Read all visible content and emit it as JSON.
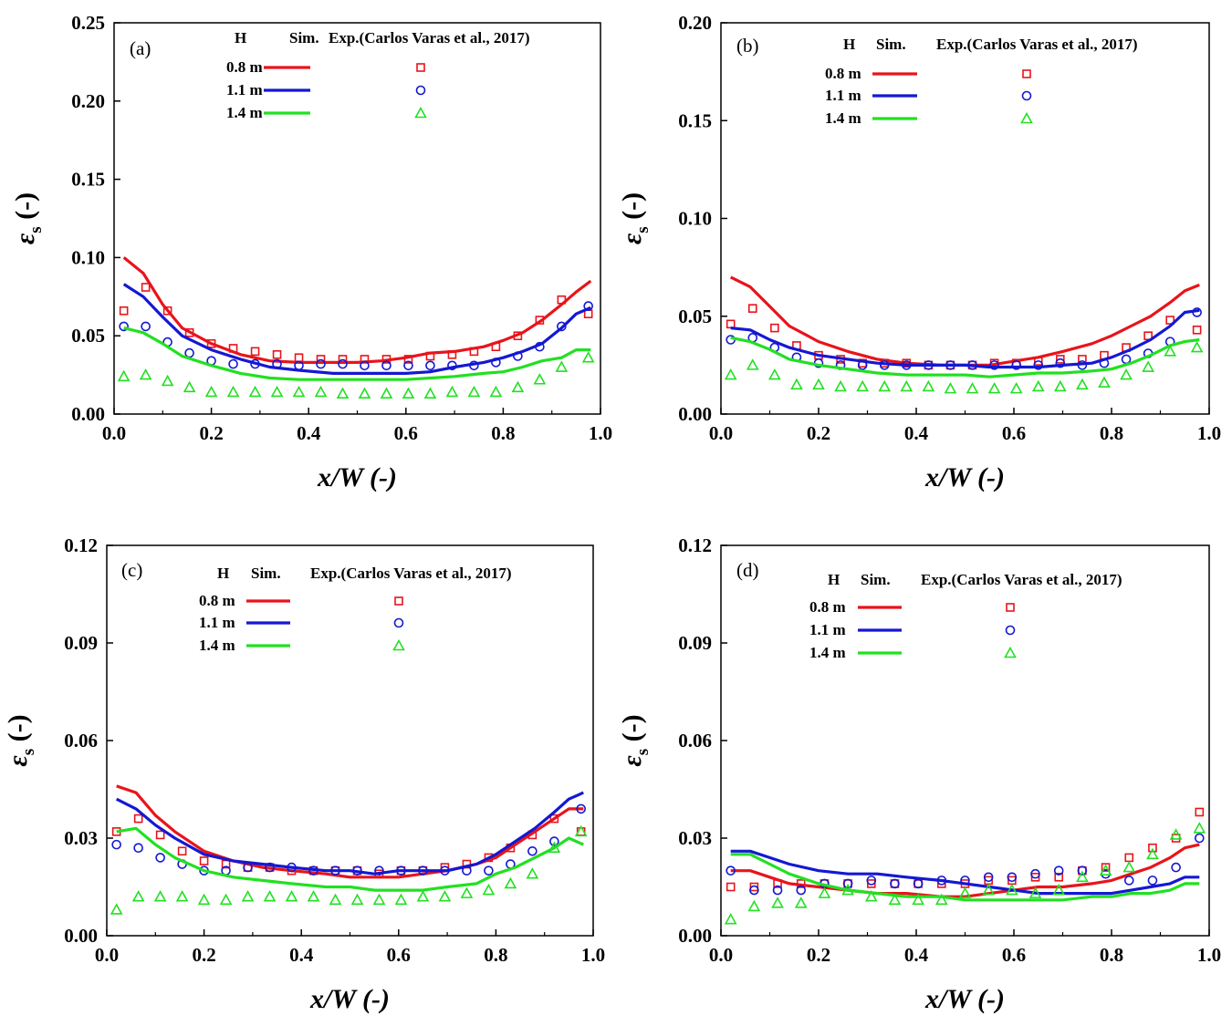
{
  "chart_data": [
    {
      "panel": "(a)",
      "type": "line+scatter",
      "xlabel": "x/W (-)",
      "ylabel_symbol": "ε",
      "ylabel_sub": "s",
      "ylabel_unit": " (-)",
      "xlim": [
        0,
        1.0
      ],
      "ylim": [
        0,
        0.25
      ],
      "xticks": [
        "0.0",
        "0.2",
        "0.4",
        "0.6",
        "0.8",
        "1.0"
      ],
      "yticks": [
        "0.00",
        "0.05",
        "0.10",
        "0.15",
        "0.20",
        "0.25"
      ],
      "legend": {
        "h": "H",
        "sim": "Sim.",
        "exp": "Exp.(Carlos Varas et al., 2017)",
        "rows": [
          "0.8 m",
          "1.1 m",
          "1.4 m"
        ]
      },
      "sim_x": [
        0.02,
        0.06,
        0.1,
        0.14,
        0.2,
        0.26,
        0.32,
        0.38,
        0.45,
        0.5,
        0.55,
        0.6,
        0.65,
        0.7,
        0.76,
        0.8,
        0.84,
        0.88,
        0.92,
        0.95,
        0.98
      ],
      "exp_x": [
        0.02,
        0.065,
        0.11,
        0.155,
        0.2,
        0.245,
        0.29,
        0.335,
        0.38,
        0.425,
        0.47,
        0.515,
        0.56,
        0.605,
        0.65,
        0.695,
        0.74,
        0.785,
        0.83,
        0.875,
        0.92,
        0.975
      ],
      "series": [
        {
          "name": "0.8 m",
          "sim": [
            0.1,
            0.09,
            0.07,
            0.055,
            0.045,
            0.038,
            0.034,
            0.033,
            0.033,
            0.033,
            0.034,
            0.036,
            0.039,
            0.04,
            0.043,
            0.047,
            0.052,
            0.06,
            0.07,
            0.078,
            0.085
          ],
          "exp": [
            0.066,
            0.081,
            0.066,
            0.052,
            0.045,
            0.042,
            0.04,
            0.038,
            0.036,
            0.035,
            0.035,
            0.035,
            0.035,
            0.035,
            0.037,
            0.038,
            0.04,
            0.043,
            0.05,
            0.06,
            0.073,
            0.064
          ]
        },
        {
          "name": "1.1 m",
          "sim": [
            0.083,
            0.075,
            0.062,
            0.05,
            0.041,
            0.035,
            0.03,
            0.028,
            0.026,
            0.026,
            0.026,
            0.026,
            0.027,
            0.03,
            0.033,
            0.036,
            0.04,
            0.045,
            0.055,
            0.064,
            0.068
          ],
          "exp": [
            0.056,
            0.056,
            0.046,
            0.039,
            0.034,
            0.032,
            0.032,
            0.032,
            0.031,
            0.032,
            0.032,
            0.031,
            0.031,
            0.031,
            0.031,
            0.031,
            0.031,
            0.033,
            0.037,
            0.043,
            0.056,
            0.069
          ]
        },
        {
          "name": "1.4 m",
          "sim": [
            0.055,
            0.052,
            0.045,
            0.037,
            0.031,
            0.026,
            0.023,
            0.022,
            0.022,
            0.022,
            0.022,
            0.022,
            0.023,
            0.024,
            0.026,
            0.027,
            0.03,
            0.034,
            0.036,
            0.041,
            0.041
          ],
          "exp": [
            0.024,
            0.025,
            0.021,
            0.017,
            0.014,
            0.014,
            0.014,
            0.014,
            0.014,
            0.014,
            0.013,
            0.013,
            0.013,
            0.013,
            0.013,
            0.014,
            0.014,
            0.014,
            0.017,
            0.022,
            0.03,
            0.036
          ]
        }
      ]
    },
    {
      "panel": "(b)",
      "type": "line+scatter",
      "xlabel": "x/W (-)",
      "ylabel_symbol": "ε",
      "ylabel_sub": "s",
      "ylabel_unit": " (-)",
      "xlim": [
        0,
        1.0
      ],
      "ylim": [
        0,
        0.2
      ],
      "xticks": [
        "0.0",
        "0.2",
        "0.4",
        "0.6",
        "0.8",
        "1.0"
      ],
      "yticks": [
        "0.00",
        "0.05",
        "0.10",
        "0.15",
        "0.20"
      ],
      "legend": {
        "h": "H",
        "sim": "Sim.",
        "exp": "Exp.(Carlos Varas et al., 2017)",
        "rows": [
          "0.8 m",
          "1.1 m",
          "1.4 m"
        ]
      },
      "sim_x": [
        0.02,
        0.06,
        0.1,
        0.14,
        0.2,
        0.26,
        0.32,
        0.38,
        0.45,
        0.5,
        0.55,
        0.6,
        0.65,
        0.7,
        0.76,
        0.8,
        0.84,
        0.88,
        0.92,
        0.95,
        0.98
      ],
      "exp_x": [
        0.02,
        0.065,
        0.11,
        0.155,
        0.2,
        0.245,
        0.29,
        0.335,
        0.38,
        0.425,
        0.47,
        0.515,
        0.56,
        0.605,
        0.65,
        0.695,
        0.74,
        0.785,
        0.83,
        0.875,
        0.92,
        0.975
      ],
      "series": [
        {
          "name": "0.8 m",
          "sim": [
            0.07,
            0.065,
            0.055,
            0.045,
            0.037,
            0.032,
            0.028,
            0.026,
            0.025,
            0.025,
            0.025,
            0.027,
            0.029,
            0.032,
            0.036,
            0.04,
            0.045,
            0.05,
            0.057,
            0.063,
            0.066
          ],
          "exp": [
            0.046,
            0.054,
            0.044,
            0.035,
            0.03,
            0.028,
            0.026,
            0.026,
            0.026,
            0.025,
            0.025,
            0.025,
            0.026,
            0.026,
            0.027,
            0.028,
            0.028,
            0.03,
            0.034,
            0.04,
            0.048,
            0.043
          ]
        },
        {
          "name": "1.1 m",
          "sim": [
            0.044,
            0.043,
            0.038,
            0.034,
            0.03,
            0.028,
            0.026,
            0.025,
            0.025,
            0.025,
            0.024,
            0.024,
            0.024,
            0.025,
            0.026,
            0.029,
            0.033,
            0.038,
            0.045,
            0.052,
            0.053
          ],
          "exp": [
            0.038,
            0.039,
            0.034,
            0.029,
            0.026,
            0.025,
            0.025,
            0.025,
            0.025,
            0.025,
            0.025,
            0.025,
            0.025,
            0.025,
            0.025,
            0.026,
            0.025,
            0.026,
            0.028,
            0.031,
            0.037,
            0.052
          ]
        },
        {
          "name": "1.4 m",
          "sim": [
            0.039,
            0.037,
            0.033,
            0.028,
            0.025,
            0.023,
            0.021,
            0.02,
            0.02,
            0.02,
            0.019,
            0.02,
            0.021,
            0.021,
            0.022,
            0.023,
            0.026,
            0.03,
            0.035,
            0.037,
            0.038
          ],
          "exp": [
            0.02,
            0.025,
            0.02,
            0.015,
            0.015,
            0.014,
            0.014,
            0.014,
            0.014,
            0.014,
            0.013,
            0.013,
            0.013,
            0.013,
            0.014,
            0.014,
            0.015,
            0.016,
            0.02,
            0.024,
            0.032,
            0.034
          ]
        }
      ]
    },
    {
      "panel": "(c)",
      "type": "line+scatter",
      "xlabel": "x/W (-)",
      "ylabel_symbol": "ε",
      "ylabel_sub": "s",
      "ylabel_unit": " (-)",
      "xlim": [
        0,
        1.0
      ],
      "ylim": [
        0,
        0.12
      ],
      "xticks": [
        "0.0",
        "0.2",
        "0.4",
        "0.6",
        "0.8",
        "1.0"
      ],
      "yticks": [
        "0.00",
        "0.03",
        "0.06",
        "0.09",
        "0.12"
      ],
      "legend": {
        "h": "H",
        "sim": "Sim.",
        "exp": "Exp.(Carlos Varas et al., 2017)",
        "rows": [
          "0.8 m",
          "1.1 m",
          "1.4 m"
        ]
      },
      "sim_x": [
        0.02,
        0.06,
        0.1,
        0.14,
        0.2,
        0.26,
        0.32,
        0.38,
        0.45,
        0.5,
        0.55,
        0.6,
        0.65,
        0.7,
        0.76,
        0.8,
        0.84,
        0.88,
        0.92,
        0.95,
        0.98
      ],
      "exp_x": [
        0.02,
        0.065,
        0.11,
        0.155,
        0.2,
        0.245,
        0.29,
        0.335,
        0.38,
        0.425,
        0.47,
        0.515,
        0.56,
        0.605,
        0.65,
        0.695,
        0.74,
        0.785,
        0.83,
        0.875,
        0.92,
        0.975
      ],
      "series": [
        {
          "name": "0.8 m",
          "sim": [
            0.046,
            0.044,
            0.037,
            0.032,
            0.026,
            0.023,
            0.021,
            0.02,
            0.019,
            0.018,
            0.018,
            0.018,
            0.019,
            0.02,
            0.022,
            0.024,
            0.028,
            0.032,
            0.036,
            0.039,
            0.039
          ],
          "exp": [
            0.032,
            0.036,
            0.031,
            0.026,
            0.023,
            0.022,
            0.021,
            0.021,
            0.02,
            0.02,
            0.02,
            0.02,
            0.019,
            0.02,
            0.02,
            0.021,
            0.022,
            0.024,
            0.027,
            0.031,
            0.036,
            0.032
          ]
        },
        {
          "name": "1.1 m",
          "sim": [
            0.042,
            0.039,
            0.034,
            0.03,
            0.025,
            0.023,
            0.022,
            0.021,
            0.02,
            0.02,
            0.019,
            0.02,
            0.02,
            0.02,
            0.022,
            0.025,
            0.029,
            0.033,
            0.038,
            0.042,
            0.044
          ],
          "exp": [
            0.028,
            0.027,
            0.024,
            0.022,
            0.02,
            0.02,
            0.021,
            0.021,
            0.021,
            0.02,
            0.02,
            0.02,
            0.02,
            0.02,
            0.02,
            0.02,
            0.02,
            0.02,
            0.022,
            0.026,
            0.029,
            0.039
          ]
        },
        {
          "name": "1.4 m",
          "sim": [
            0.032,
            0.033,
            0.028,
            0.024,
            0.02,
            0.018,
            0.017,
            0.016,
            0.015,
            0.015,
            0.014,
            0.014,
            0.014,
            0.015,
            0.016,
            0.019,
            0.021,
            0.024,
            0.027,
            0.03,
            0.028
          ],
          "exp": [
            0.008,
            0.012,
            0.012,
            0.012,
            0.011,
            0.011,
            0.012,
            0.012,
            0.012,
            0.012,
            0.011,
            0.011,
            0.011,
            0.011,
            0.012,
            0.012,
            0.013,
            0.014,
            0.016,
            0.019,
            0.027,
            0.032
          ]
        }
      ]
    },
    {
      "panel": "(d)",
      "type": "line+scatter",
      "xlabel": "x/W (-)",
      "ylabel_symbol": "ε",
      "ylabel_sub": "s",
      "ylabel_unit": " (-)",
      "xlim": [
        0,
        1.0
      ],
      "ylim": [
        0,
        0.12
      ],
      "xticks": [
        "0.0",
        "0.2",
        "0.4",
        "0.6",
        "0.8",
        "1.0"
      ],
      "yticks": [
        "0.00",
        "0.03",
        "0.06",
        "0.09",
        "0.12"
      ],
      "legend": {
        "h": "H",
        "sim": "Sim.",
        "exp": "Exp.(Carlos Varas et al., 2017)",
        "rows": [
          "0.8 m",
          "1.1 m",
          "1.4 m"
        ]
      },
      "sim_x": [
        0.02,
        0.06,
        0.1,
        0.14,
        0.2,
        0.26,
        0.32,
        0.38,
        0.45,
        0.5,
        0.55,
        0.6,
        0.65,
        0.7,
        0.76,
        0.8,
        0.84,
        0.88,
        0.92,
        0.95,
        0.98
      ],
      "exp_x": [
        0.02,
        0.068,
        0.116,
        0.164,
        0.212,
        0.26,
        0.308,
        0.356,
        0.404,
        0.452,
        0.5,
        0.548,
        0.596,
        0.644,
        0.692,
        0.74,
        0.788,
        0.836,
        0.884,
        0.932,
        0.98
      ],
      "series": [
        {
          "name": "0.8 m",
          "sim": [
            0.02,
            0.02,
            0.018,
            0.016,
            0.015,
            0.014,
            0.013,
            0.013,
            0.012,
            0.012,
            0.013,
            0.014,
            0.015,
            0.015,
            0.016,
            0.017,
            0.019,
            0.021,
            0.024,
            0.027,
            0.028
          ],
          "exp": [
            0.015,
            0.015,
            0.016,
            0.016,
            0.016,
            0.016,
            0.016,
            0.016,
            0.016,
            0.016,
            0.016,
            0.017,
            0.017,
            0.018,
            0.018,
            0.02,
            0.021,
            0.024,
            0.027,
            0.03,
            0.038
          ]
        },
        {
          "name": "1.1 m",
          "sim": [
            0.026,
            0.026,
            0.024,
            0.022,
            0.02,
            0.019,
            0.019,
            0.018,
            0.017,
            0.016,
            0.015,
            0.014,
            0.013,
            0.013,
            0.013,
            0.013,
            0.014,
            0.015,
            0.016,
            0.018,
            0.018
          ],
          "exp": [
            0.02,
            0.014,
            0.014,
            0.014,
            0.016,
            0.016,
            0.017,
            0.016,
            0.016,
            0.017,
            0.017,
            0.018,
            0.018,
            0.019,
            0.02,
            0.02,
            0.019,
            0.017,
            0.017,
            0.021,
            0.03
          ]
        },
        {
          "name": "1.4 m",
          "sim": [
            0.025,
            0.025,
            0.022,
            0.019,
            0.016,
            0.014,
            0.013,
            0.012,
            0.012,
            0.011,
            0.011,
            0.011,
            0.011,
            0.011,
            0.012,
            0.012,
            0.013,
            0.013,
            0.014,
            0.016,
            0.016
          ],
          "exp": [
            0.005,
            0.009,
            0.01,
            0.01,
            0.013,
            0.014,
            0.012,
            0.011,
            0.011,
            0.011,
            0.013,
            0.014,
            0.014,
            0.013,
            0.014,
            0.018,
            0.02,
            0.021,
            0.025,
            0.031,
            0.033
          ]
        }
      ]
    }
  ],
  "colors": {
    "0.8 m": "#e8141b",
    "1.1 m": "#1418d2",
    "1.4 m": "#22e022"
  },
  "markers": [
    "square",
    "circle",
    "triangle"
  ]
}
